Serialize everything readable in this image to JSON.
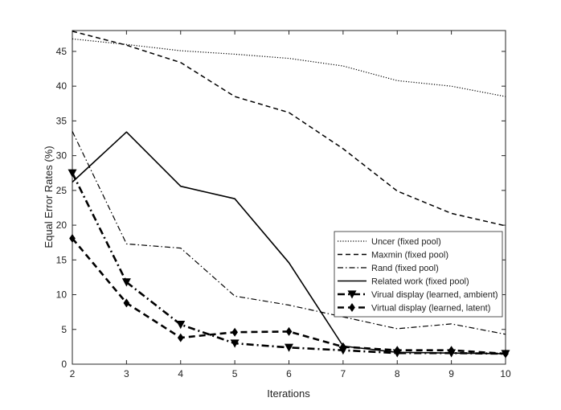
{
  "chart_data": {
    "type": "line",
    "title": "",
    "xlabel": "Iterations",
    "ylabel": "Equal Error Rates (%)",
    "xlim": [
      2,
      10
    ],
    "ylim": [
      0,
      48
    ],
    "x": [
      2,
      3,
      4,
      5,
      6,
      7,
      8,
      9,
      10
    ],
    "x_ticks": [
      "2",
      "3",
      "4",
      "5",
      "6",
      "7",
      "8",
      "9",
      "10"
    ],
    "y_ticks": [
      "0",
      "5",
      "10",
      "15",
      "20",
      "25",
      "30",
      "35",
      "40",
      "45"
    ],
    "y_tick_values": [
      0,
      5,
      10,
      15,
      20,
      25,
      30,
      35,
      40,
      45
    ],
    "legend_position": "lower-right",
    "series": [
      {
        "name": "Uncer (fixed pool)",
        "style": "dotted",
        "marker": "none",
        "values": [
          46.8,
          46.0,
          45.1,
          44.6,
          44.0,
          42.9,
          40.8,
          40.0,
          38.5
        ]
      },
      {
        "name": "Maxmin (fixed pool)",
        "style": "dashed",
        "marker": "none",
        "values": [
          47.9,
          45.9,
          43.4,
          38.5,
          36.2,
          31.0,
          24.9,
          21.7,
          19.9
        ]
      },
      {
        "name": "Rand (fixed pool)",
        "style": "dashdot",
        "marker": "none",
        "values": [
          33.5,
          17.3,
          16.7,
          9.8,
          8.5,
          6.8,
          5.1,
          5.8,
          4.3
        ]
      },
      {
        "name": "Related work (fixed pool)",
        "style": "solid",
        "marker": "none",
        "values": [
          26.2,
          33.4,
          25.6,
          23.8,
          14.6,
          2.6,
          1.7,
          1.6,
          1.5
        ]
      },
      {
        "name": "Virual display (learned, ambient)",
        "style": "dashdot-bold",
        "marker": "triangle-down",
        "values": [
          27.5,
          11.8,
          5.7,
          3.0,
          2.4,
          2.0,
          1.6,
          1.6,
          1.5
        ]
      },
      {
        "name": "Virtual display (learned, latent)",
        "style": "dashed-bold",
        "marker": "diamond",
        "values": [
          18.1,
          8.8,
          3.8,
          4.6,
          4.7,
          2.5,
          2.0,
          2.0,
          1.5
        ]
      }
    ]
  }
}
